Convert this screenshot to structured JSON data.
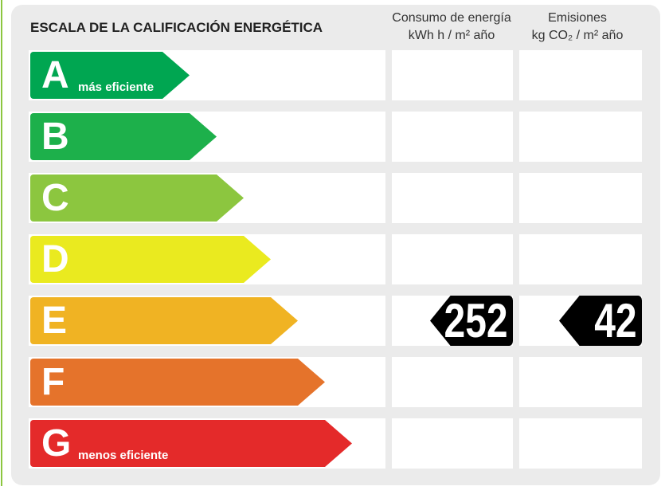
{
  "label": {
    "title": "ESCALA DE LA CALIFICACIÓN ENERGÉTICA",
    "columns": [
      {
        "line1": "Consumo de energía",
        "line2": "kWh h  / m² año"
      },
      {
        "line1": "Emisiones",
        "line2": "kg CO₂  / m² año"
      }
    ],
    "ratings": [
      {
        "letter": "A",
        "sublabel": "más eficiente",
        "color": "#00a651"
      },
      {
        "letter": "B",
        "sublabel": "",
        "color": "#1db04b"
      },
      {
        "letter": "C",
        "sublabel": "",
        "color": "#8cc63f"
      },
      {
        "letter": "D",
        "sublabel": "",
        "color": "#eaea1f"
      },
      {
        "letter": "E",
        "sublabel": "",
        "color": "#f0b323"
      },
      {
        "letter": "F",
        "sublabel": "",
        "color": "#e5732b"
      },
      {
        "letter": "G",
        "sublabel": "menos eficiente",
        "color": "#e42a2a"
      }
    ],
    "result": {
      "rating": "E",
      "consumption": "252",
      "emissions": "42"
    }
  }
}
